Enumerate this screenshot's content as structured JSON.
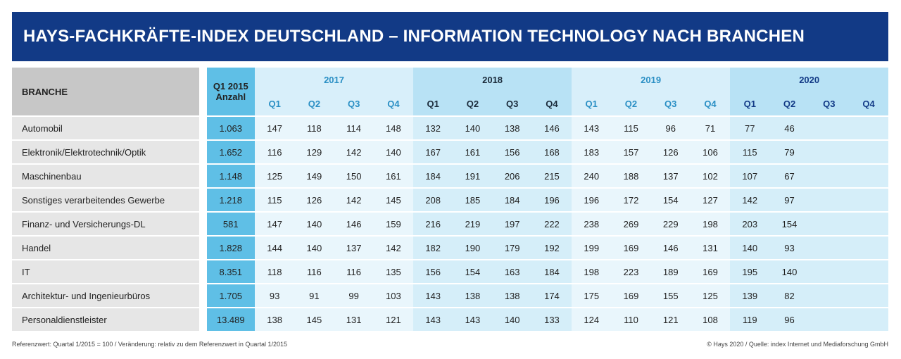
{
  "title": "HAYS-FACHKRÄFTE-INDEX DEUTSCHLAND – INFORMATION TECHNOLOGY NACH BRANCHEN",
  "header": {
    "branche": "BRANCHE",
    "base_line1": "Q1 2015",
    "base_line2": "Anzahl",
    "years": [
      "2017",
      "2018",
      "2019",
      "2020"
    ],
    "quarters": [
      "Q1",
      "Q2",
      "Q3",
      "Q4"
    ]
  },
  "footer": {
    "left": "Referenzwert: Quartal 1/2015 = 100 / Veränderung: relativ zu dem Referenzwert in Quartal 1/2015",
    "right": "© Hays 2020 / Quelle: index Internet und Mediaforschung GmbH"
  },
  "colors": {
    "title_bg": "#123a86",
    "base_column": "#5fbfe6",
    "year_2017_2019_text": "#2a8fc4",
    "year_2018_2020_text": "#1a1a1a"
  },
  "chart_data": {
    "type": "table",
    "columns": [
      "BRANCHE",
      "Q1 2015 Anzahl",
      "2017 Q1",
      "2017 Q2",
      "2017 Q3",
      "2017 Q4",
      "2018 Q1",
      "2018 Q2",
      "2018 Q3",
      "2018 Q4",
      "2019 Q1",
      "2019 Q2",
      "2019 Q3",
      "2019 Q4",
      "2020 Q1",
      "2020 Q2",
      "2020 Q3",
      "2020 Q4"
    ],
    "rows": [
      {
        "branche": "Automobil",
        "base": "1.063",
        "values": [
          "147",
          "118",
          "114",
          "148",
          "132",
          "140",
          "138",
          "146",
          "143",
          "115",
          "96",
          "71",
          "77",
          "46",
          "",
          ""
        ]
      },
      {
        "branche": "Elektronik/Elektrotechnik/Optik",
        "base": "1.652",
        "values": [
          "116",
          "129",
          "142",
          "140",
          "167",
          "161",
          "156",
          "168",
          "183",
          "157",
          "126",
          "106",
          "115",
          "79",
          "",
          ""
        ]
      },
      {
        "branche": "Maschinenbau",
        "base": "1.148",
        "values": [
          "125",
          "149",
          "150",
          "161",
          "184",
          "191",
          "206",
          "215",
          "240",
          "188",
          "137",
          "102",
          "107",
          "67",
          "",
          ""
        ]
      },
      {
        "branche": "Sonstiges verarbeitendes Gewerbe",
        "base": "1.218",
        "values": [
          "115",
          "126",
          "142",
          "145",
          "208",
          "185",
          "184",
          "196",
          "196",
          "172",
          "154",
          "127",
          "142",
          "97",
          "",
          ""
        ]
      },
      {
        "branche": "Finanz- und Versicherungs-DL",
        "base": "581",
        "values": [
          "147",
          "140",
          "146",
          "159",
          "216",
          "219",
          "197",
          "222",
          "238",
          "269",
          "229",
          "198",
          "203",
          "154",
          "",
          ""
        ]
      },
      {
        "branche": "Handel",
        "base": "1.828",
        "values": [
          "144",
          "140",
          "137",
          "142",
          "182",
          "190",
          "179",
          "192",
          "199",
          "169",
          "146",
          "131",
          "140",
          "93",
          "",
          ""
        ]
      },
      {
        "branche": "IT",
        "base": "8.351",
        "values": [
          "118",
          "116",
          "116",
          "135",
          "156",
          "154",
          "163",
          "184",
          "198",
          "223",
          "189",
          "169",
          "195",
          "140",
          "",
          ""
        ]
      },
      {
        "branche": "Architektur- und Ingenieurbüros",
        "base": "1.705",
        "values": [
          "93",
          "91",
          "99",
          "103",
          "143",
          "138",
          "138",
          "174",
          "175",
          "169",
          "155",
          "125",
          "139",
          "82",
          "",
          ""
        ]
      },
      {
        "branche": "Personaldienstleister",
        "base": "13.489",
        "values": [
          "138",
          "145",
          "131",
          "121",
          "143",
          "143",
          "140",
          "133",
          "124",
          "110",
          "121",
          "108",
          "119",
          "96",
          "",
          ""
        ]
      }
    ]
  }
}
